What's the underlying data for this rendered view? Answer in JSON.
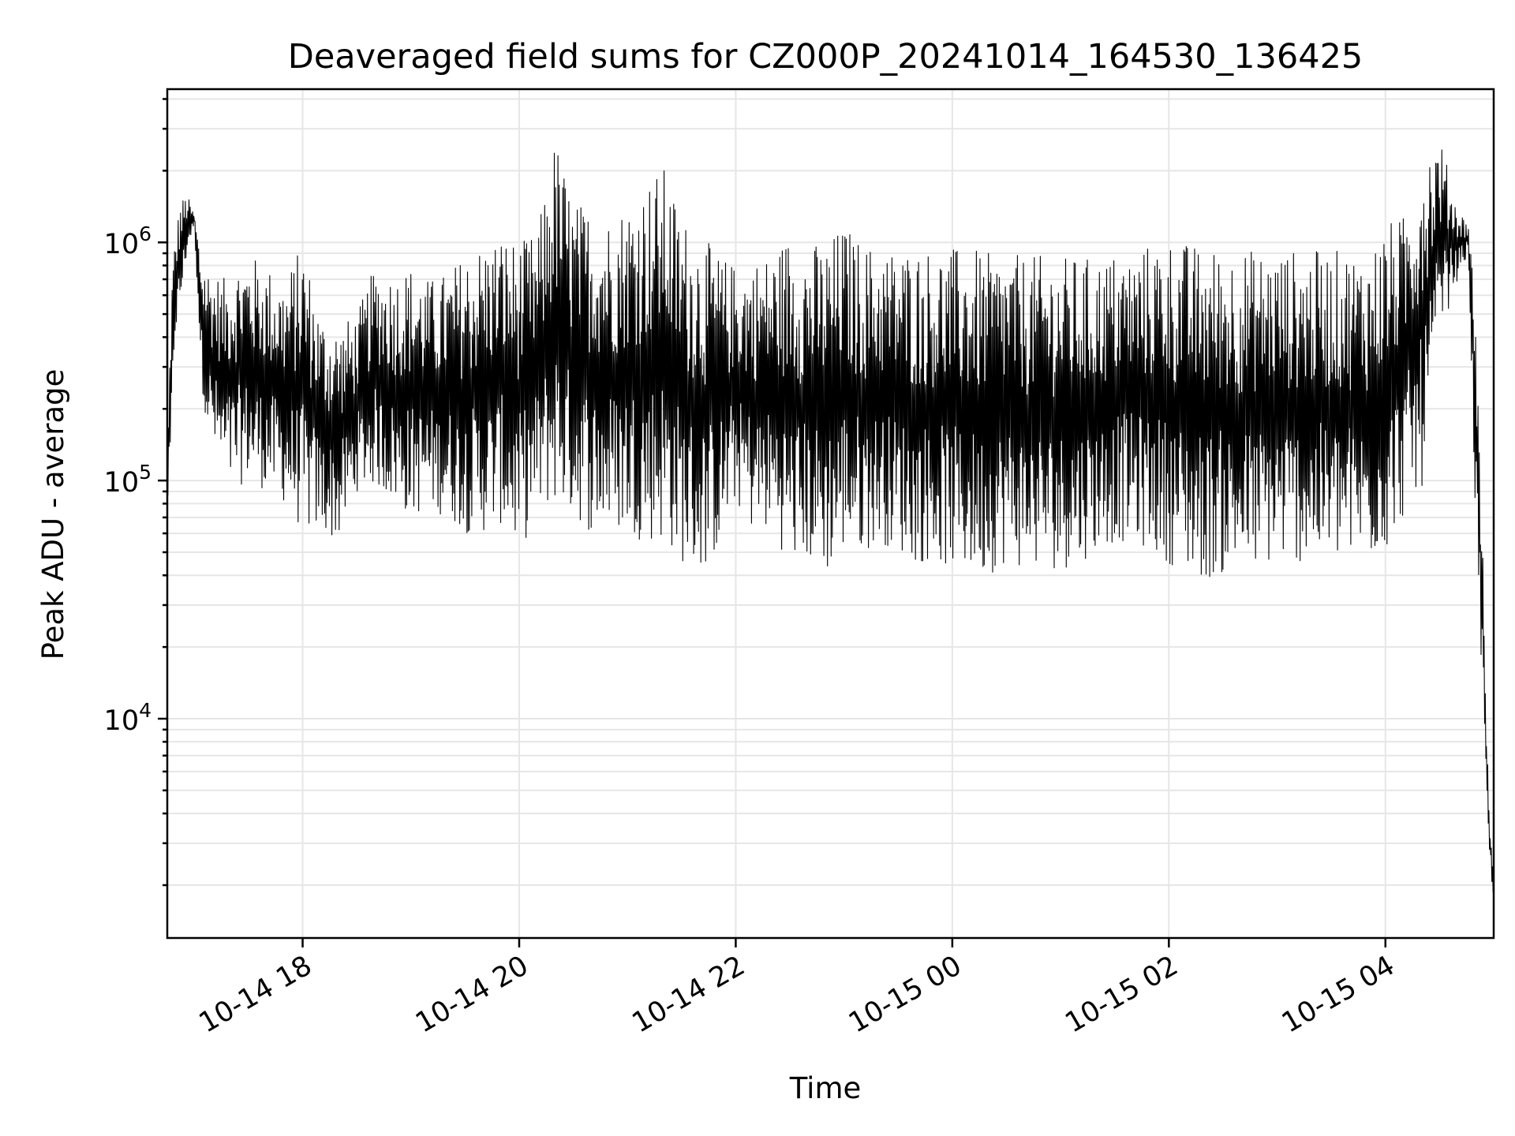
{
  "chart_data": {
    "type": "line",
    "title": "Deaveraged field sums for CZ000P_20241014_164530_136425",
    "xlabel": "Time",
    "ylabel": "Peak ADU - average",
    "yscale": "log",
    "grid": true,
    "xlim": [
      "2024-10-14T16:45",
      "2024-10-15T05:00"
    ],
    "ylim": [
      1200,
      4400000
    ],
    "x_ticks": [
      {
        "value": "2024-10-14T18:00",
        "label": "10-14 18"
      },
      {
        "value": "2024-10-14T20:00",
        "label": "10-14 20"
      },
      {
        "value": "2024-10-14T22:00",
        "label": "10-14 22"
      },
      {
        "value": "2024-10-15T00:00",
        "label": "10-15 00"
      },
      {
        "value": "2024-10-15T02:00",
        "label": "10-15 02"
      },
      {
        "value": "2024-10-15T04:00",
        "label": "10-15 04"
      }
    ],
    "y_ticks": [
      {
        "value": 10000,
        "base": "10",
        "exp": "4"
      },
      {
        "value": 100000,
        "base": "10",
        "exp": "5"
      },
      {
        "value": 1000000,
        "base": "10",
        "exp": "6"
      }
    ],
    "series_color": "#000000",
    "series": [
      {
        "name": "",
        "x": [
          "2024-10-14T16:45",
          "2024-10-14T16:47",
          "2024-10-14T16:49",
          "2024-10-14T16:52",
          "2024-10-14T16:56",
          "2024-10-14T17:00",
          "2024-10-14T17:04",
          "2024-10-14T17:08",
          "2024-10-14T17:12",
          "2024-10-14T17:16",
          "2024-10-14T17:20",
          "2024-10-14T17:30",
          "2024-10-14T17:40",
          "2024-10-14T17:50",
          "2024-10-14T18:00",
          "2024-10-14T18:10",
          "2024-10-14T18:20",
          "2024-10-14T18:30",
          "2024-10-14T18:40",
          "2024-10-14T18:50",
          "2024-10-14T19:00",
          "2024-10-14T19:10",
          "2024-10-14T19:20",
          "2024-10-14T19:30",
          "2024-10-14T19:40",
          "2024-10-14T19:50",
          "2024-10-14T20:00",
          "2024-10-14T20:10",
          "2024-10-14T20:20",
          "2024-10-14T20:30",
          "2024-10-14T20:40",
          "2024-10-14T20:50",
          "2024-10-14T21:00",
          "2024-10-14T21:10",
          "2024-10-14T21:20",
          "2024-10-14T21:30",
          "2024-10-14T21:40",
          "2024-10-14T21:50",
          "2024-10-14T22:00",
          "2024-10-14T22:10",
          "2024-10-14T22:20",
          "2024-10-14T22:30",
          "2024-10-14T22:40",
          "2024-10-14T22:50",
          "2024-10-14T23:00",
          "2024-10-14T23:10",
          "2024-10-14T23:20",
          "2024-10-14T23:30",
          "2024-10-14T23:40",
          "2024-10-14T23:50",
          "2024-10-15T00:00",
          "2024-10-15T00:10",
          "2024-10-15T00:20",
          "2024-10-15T00:30",
          "2024-10-15T00:40",
          "2024-10-15T00:50",
          "2024-10-15T01:00",
          "2024-10-15T01:10",
          "2024-10-15T01:20",
          "2024-10-15T01:30",
          "2024-10-15T01:40",
          "2024-10-15T01:50",
          "2024-10-15T02:00",
          "2024-10-15T02:10",
          "2024-10-15T02:20",
          "2024-10-15T02:30",
          "2024-10-15T02:40",
          "2024-10-15T02:50",
          "2024-10-15T03:00",
          "2024-10-15T03:10",
          "2024-10-15T03:20",
          "2024-10-15T03:30",
          "2024-10-15T03:40",
          "2024-10-15T03:50",
          "2024-10-15T04:00",
          "2024-10-15T04:10",
          "2024-10-15T04:20",
          "2024-10-15T04:30",
          "2024-10-15T04:40",
          "2024-10-15T04:46",
          "2024-10-15T04:50",
          "2024-10-15T04:54",
          "2024-10-15T04:57",
          "2024-10-15T05:00"
        ],
        "y_low": [
          80000,
          85000,
          380000,
          500000,
          900000,
          1200000,
          250000,
          150000,
          120000,
          100000,
          90000,
          100000,
          90000,
          80000,
          60000,
          60000,
          55000,
          90000,
          95000,
          80000,
          70000,
          75000,
          70000,
          60000,
          60000,
          65000,
          50000,
          70000,
          80000,
          70000,
          60000,
          60000,
          60000,
          55000,
          55000,
          45000,
          40000,
          50000,
          80000,
          60000,
          60000,
          45000,
          45000,
          40000,
          50000,
          50000,
          55000,
          50000,
          45000,
          45000,
          42000,
          40000,
          40000,
          45000,
          42000,
          42000,
          42000,
          45000,
          50000,
          55000,
          55000,
          50000,
          45000,
          40000,
          38000,
          40000,
          40000,
          42000,
          45000,
          45000,
          45000,
          45000,
          45000,
          45000,
          50000,
          70000,
          90000,
          400000,
          700000,
          900000,
          60000,
          10000,
          3000,
          1700
        ],
        "y_high": [
          100000,
          700000,
          1000000,
          1500000,
          1600000,
          1300000,
          900000,
          800000,
          750000,
          700000,
          800000,
          900000,
          800000,
          700000,
          1000000,
          500000,
          450000,
          500000,
          800000,
          750000,
          800000,
          700000,
          750000,
          900000,
          1000000,
          1100000,
          1000000,
          1100000,
          2800000,
          1500000,
          1400000,
          1300000,
          1500000,
          1800000,
          2100000,
          1300000,
          1100000,
          900000,
          800000,
          850000,
          900000,
          1100000,
          1000000,
          1000000,
          1200000,
          1000000,
          950000,
          950000,
          950000,
          950000,
          950000,
          950000,
          900000,
          900000,
          880000,
          880000,
          870000,
          870000,
          860000,
          900000,
          900000,
          1000000,
          1050000,
          1000000,
          950000,
          950000,
          950000,
          930000,
          930000,
          930000,
          930000,
          930000,
          930000,
          900000,
          1200000,
          1300000,
          2500000,
          2800000,
          1400000,
          1200000,
          600000,
          50000,
          5000,
          2000
        ]
      }
    ]
  }
}
